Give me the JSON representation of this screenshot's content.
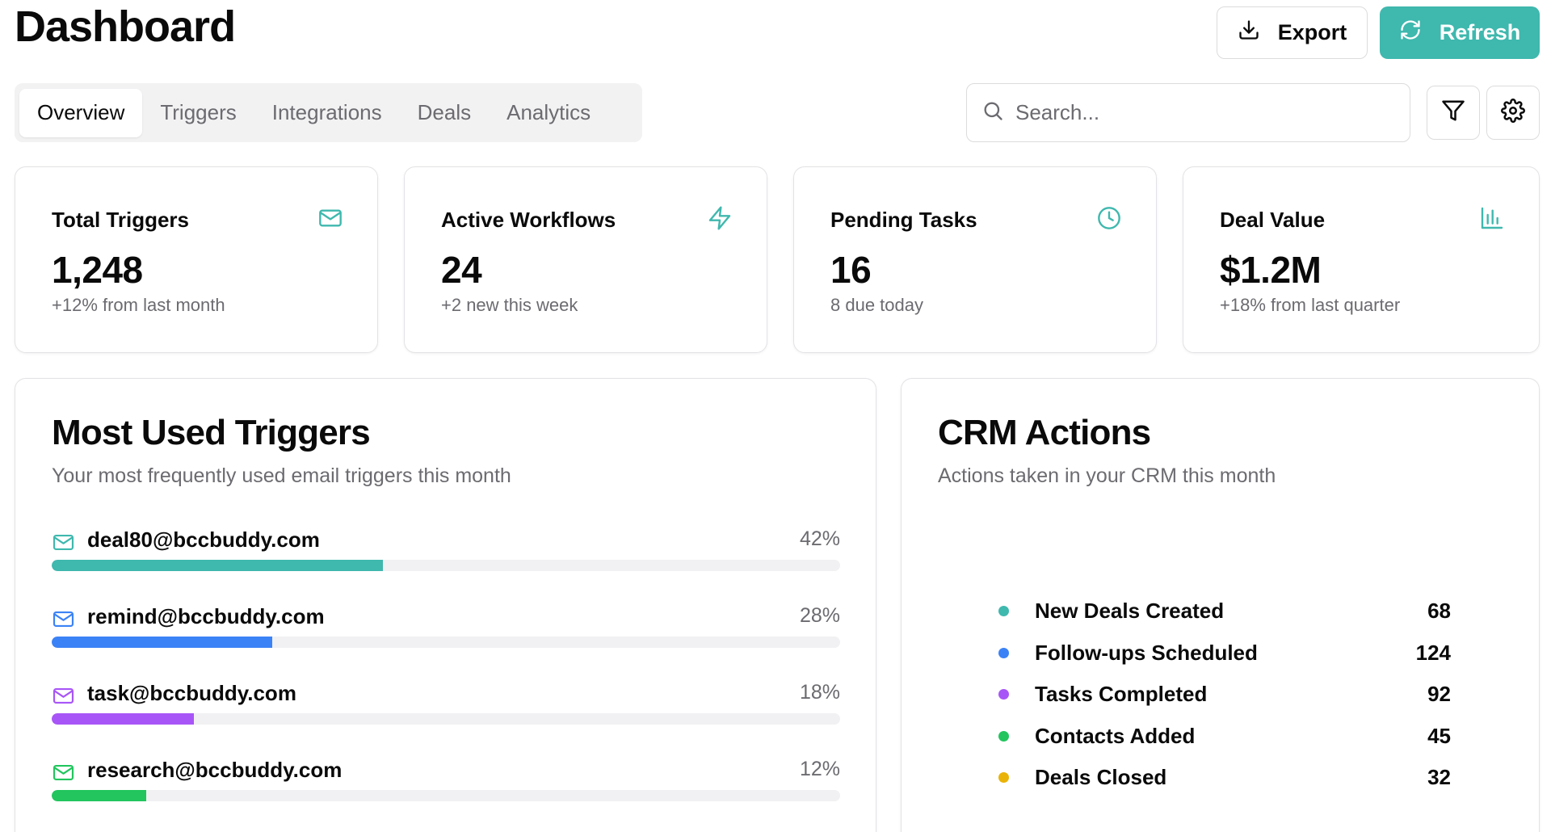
{
  "header": {
    "title": "Dashboard",
    "export_label": "Export",
    "refresh_label": "Refresh"
  },
  "tabs": [
    {
      "label": "Overview",
      "active": true
    },
    {
      "label": "Triggers",
      "active": false
    },
    {
      "label": "Integrations",
      "active": false
    },
    {
      "label": "Deals",
      "active": false
    },
    {
      "label": "Analytics",
      "active": false
    }
  ],
  "search": {
    "placeholder": "Search...",
    "value": ""
  },
  "toolbar_icons": [
    "filter-icon",
    "settings-icon"
  ],
  "stats": [
    {
      "title": "Total Triggers",
      "value": "1,248",
      "sub": "+12% from last month",
      "icon": "mail-icon"
    },
    {
      "title": "Active Workflows",
      "value": "24",
      "sub": "+2 new this week",
      "icon": "lightning-icon"
    },
    {
      "title": "Pending Tasks",
      "value": "16",
      "sub": "8 due today",
      "icon": "clock-icon"
    },
    {
      "title": "Deal Value",
      "value": "$1.2M",
      "sub": "+18% from last quarter",
      "icon": "bar-chart-icon"
    }
  ],
  "most_used": {
    "title": "Most Used Triggers",
    "subtitle": "Your most frequently used email triggers this month",
    "items": [
      {
        "email": "deal80@bccbuddy.com",
        "pct_label": "42%",
        "fraction": 0.42,
        "color": "#3fb8ae"
      },
      {
        "email": "remind@bccbuddy.com",
        "pct_label": "28%",
        "fraction": 0.28,
        "color": "#3b82f6"
      },
      {
        "email": "task@bccbuddy.com",
        "pct_label": "18%",
        "fraction": 0.18,
        "color": "#a855f7"
      },
      {
        "email": "research@bccbuddy.com",
        "pct_label": "12%",
        "fraction": 0.12,
        "color": "#22c55e"
      }
    ]
  },
  "crm": {
    "title": "CRM Actions",
    "subtitle": "Actions taken in your CRM this month",
    "items": [
      {
        "label": "New Deals Created",
        "count": "68",
        "color": "#3fb8ae"
      },
      {
        "label": "Follow-ups Scheduled",
        "count": "124",
        "color": "#3b82f6"
      },
      {
        "label": "Tasks Completed",
        "count": "92",
        "color": "#a855f7"
      },
      {
        "label": "Contacts Added",
        "count": "45",
        "color": "#22c55e"
      },
      {
        "label": "Deals Closed",
        "count": "32",
        "color": "#eab308"
      }
    ]
  },
  "colors": {
    "accent": "#3fb8ae",
    "muted_text": "#6b6b70",
    "border": "#e3e3e6"
  }
}
